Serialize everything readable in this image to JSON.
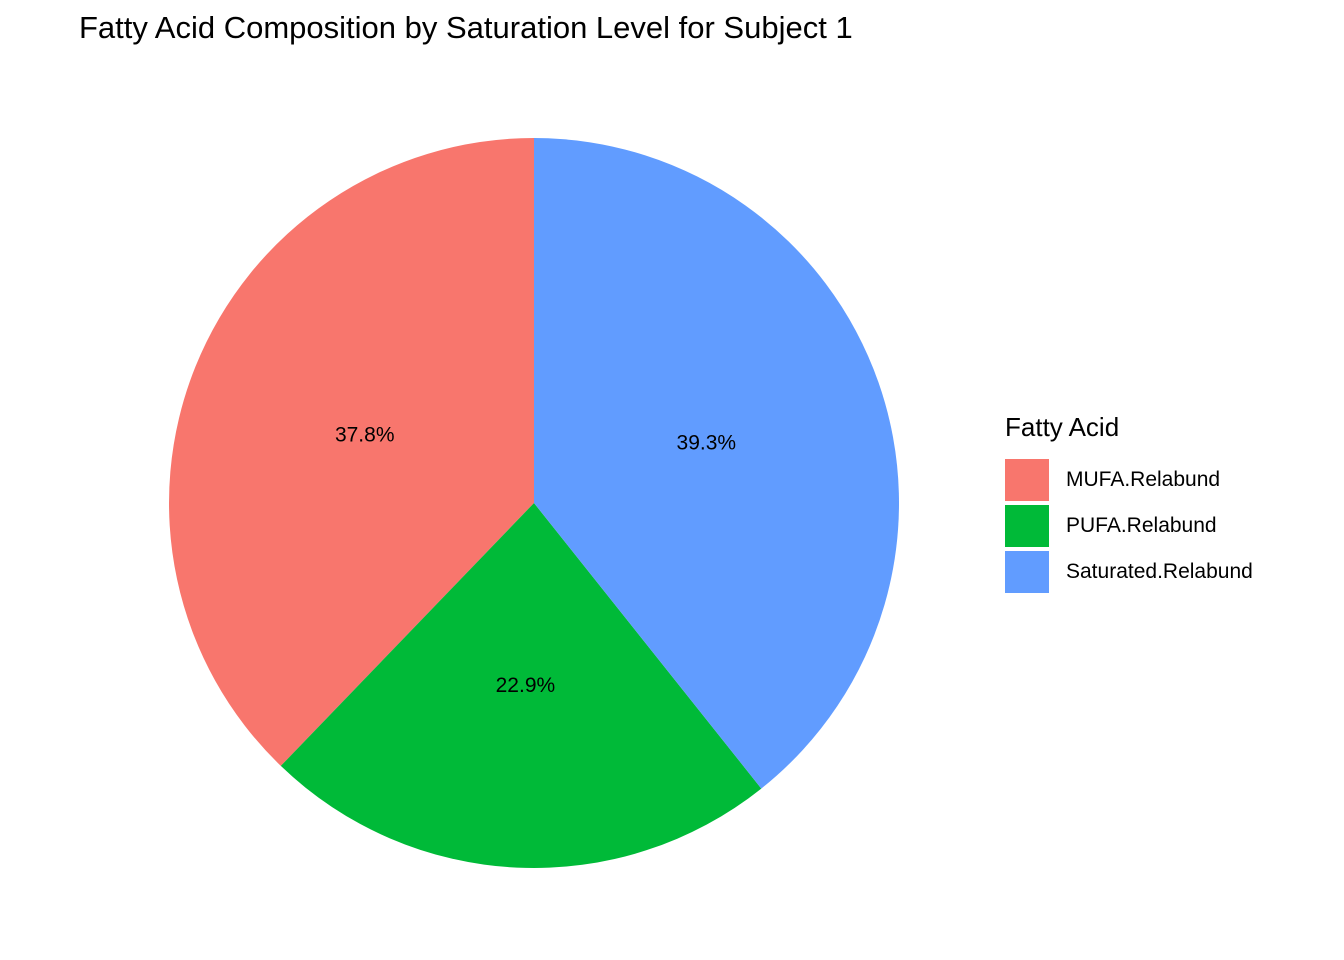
{
  "chart_data": {
    "type": "pie",
    "title": "Fatty Acid Composition by Saturation Level for Subject 1",
    "legend_title": "Fatty Acid",
    "legend_position": "right",
    "slices": [
      {
        "name": "MUFA.Relabund",
        "value": 37.8,
        "label": "37.8%",
        "color": "#F8766D"
      },
      {
        "name": "PUFA.Relabund",
        "value": 22.9,
        "label": "22.9%",
        "color": "#00BA38"
      },
      {
        "name": "Saturated.Relabund",
        "value": 39.3,
        "label": "39.3%",
        "color": "#619CFF"
      }
    ]
  }
}
